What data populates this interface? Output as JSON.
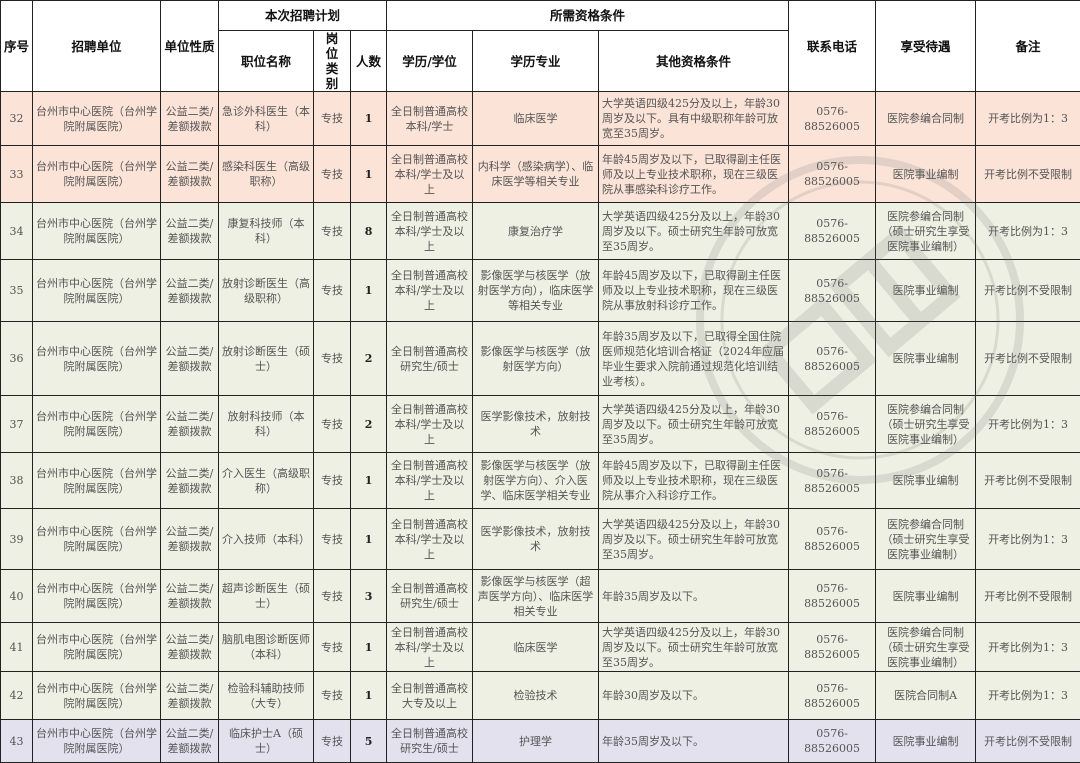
{
  "headers": {
    "seq": "序号",
    "unit": "招聘单位",
    "nature": "单位性质",
    "plan": "本次招聘计划",
    "position": "职位名称",
    "category": "岗位类别",
    "count": "人数",
    "qualifications": "所需资格条件",
    "degree": "学历/学位",
    "major": "学历专业",
    "other": "其他资格条件",
    "phone": "联系电话",
    "benefit": "享受待遇",
    "note": "备注"
  },
  "colors": {
    "pink": "#fbe3d8",
    "green": "#eef0e3",
    "purple": "#e4e1ef"
  },
  "rows": [
    {
      "tone": "pink",
      "seq": "32",
      "unit": "台州市中心医院（台州学院附属医院）",
      "nature": "公益二类/差额拨款",
      "position": "急诊外科医生（本科）",
      "category": "专技",
      "count": "1",
      "degree": "全日制普通高校本科/学士",
      "major": "临床医学",
      "other": "大学英语四级425分及以上，年龄30周岁及以下。具有中级职称年龄可放宽至35周岁。",
      "phone": "0576-88526005",
      "benefit": "医院参编合同制",
      "note": "开考比例为1：3"
    },
    {
      "tone": "pink",
      "seq": "33",
      "unit": "台州市中心医院（台州学院附属医院）",
      "nature": "公益二类/差额拨款",
      "position": "感染科医生（高级职称）",
      "category": "专技",
      "count": "1",
      "degree": "全日制普通高校本科/学士及以上",
      "major": "内科学（感染病学）、临床医学等相关专业",
      "other": "年龄45周岁及以下，已取得副主任医师及以上专业技术职称，现在三级医院从事感染科诊疗工作。",
      "phone": "0576-88526005",
      "benefit": "医院事业编制",
      "note": "开考比例不受限制"
    },
    {
      "tone": "green",
      "seq": "34",
      "unit": "台州市中心医院（台州学院附属医院）",
      "nature": "公益二类/差额拨款",
      "position": "康复科技师（本科）",
      "category": "专技",
      "count": "8",
      "degree": "全日制普通高校本科/学士及以上",
      "major": "康复治疗学",
      "other": "大学英语四级425分及以上，年龄30周岁及以下。硕士研究生年龄可放宽至35周岁。",
      "phone": "0576-88526005",
      "benefit": "医院参编合同制（硕士研究生享受医院事业编制）",
      "note": "开考比例为1：3"
    },
    {
      "tone": "green",
      "seq": "35",
      "unit": "台州市中心医院（台州学院附属医院）",
      "nature": "公益二类/差额拨款",
      "position": "放射诊断医生（高级职称）",
      "category": "专技",
      "count": "1",
      "degree": "全日制普通高校本科/学士及以上",
      "major": "影像医学与核医学（放射医学方向），临床医学等相关专业",
      "other": "年龄45周岁及以下，已取得副主任医师及以上专业技术职称，现在三级医院从事放射科诊疗工作。",
      "phone": "0576-88526005",
      "benefit": "医院事业编制",
      "note": "开考比例不受限制"
    },
    {
      "tone": "green",
      "seq": "36",
      "unit": "台州市中心医院（台州学院附属医院）",
      "nature": "公益二类/差额拨款",
      "position": "放射诊断医生（硕士）",
      "category": "专技",
      "count": "2",
      "degree": "全日制普通高校研究生/硕士",
      "major": "影像医学与核医学（放射医学方向）",
      "other": "年龄35周岁及以下，已取得全国住院医师规范化培训合格证（2024年应届毕业生要求入院前通过规范化培训结业考核）。",
      "phone": "0576-88526005",
      "benefit": "医院事业编制",
      "note": "开考比例不受限制"
    },
    {
      "tone": "green",
      "seq": "37",
      "unit": "台州市中心医院（台州学院附属医院）",
      "nature": "公益二类/差额拨款",
      "position": "放射科技师（本科）",
      "category": "专技",
      "count": "2",
      "degree": "全日制普通高校本科/学士及以上",
      "major": "医学影像技术，放射技术",
      "other": "大学英语四级425分及以上，年龄30周岁及以下。硕士研究生年龄可放宽至35周岁。",
      "phone": "0576-88526005",
      "benefit": "医院参编合同制（硕士研究生享受医院事业编制）",
      "note": "开考比例为1：3"
    },
    {
      "tone": "green",
      "seq": "38",
      "unit": "台州市中心医院（台州学院附属医院）",
      "nature": "公益二类/差额拨款",
      "position": "介入医生（高级职称）",
      "category": "专技",
      "count": "1",
      "degree": "全日制普通高校本科/学士及以上",
      "major": "影像医学与核医学（放射医学方向）、介入医学、临床医学相关专业",
      "other": "年龄45周岁及以下，已取得副主任医师及以上专业技术职称，现在三级医院从事介入科诊疗工作。",
      "phone": "0576-88526005",
      "benefit": "医院事业编制",
      "note": "开考比例不受限制"
    },
    {
      "tone": "green",
      "seq": "39",
      "unit": "台州市中心医院（台州学院附属医院）",
      "nature": "公益二类/差额拨款",
      "position": "介入技师（本科）",
      "category": "专技",
      "count": "1",
      "degree": "全日制普通高校本科/学士及以上",
      "major": "医学影像技术，放射技术",
      "other": "大学英语四级425分及以上，年龄30周岁及以下。硕士研究生年龄可放宽至35周岁。",
      "phone": "0576-88526005",
      "benefit": "医院参编合同制（硕士研究生享受医院事业编制）",
      "note": "开考比例为1：3"
    },
    {
      "tone": "green",
      "seq": "40",
      "unit": "台州市中心医院（台州学院附属医院）",
      "nature": "公益二类/差额拨款",
      "position": "超声诊断医生（硕士）",
      "category": "专技",
      "count": "3",
      "degree": "全日制普通高校研究生/硕士",
      "major": "影像医学与核医学（超声医学方向）、临床医学相关专业",
      "other": "年龄35周岁及以下。",
      "phone": "0576-88526005",
      "benefit": "医院事业编制",
      "note": "开考比例不受限制"
    },
    {
      "tone": "green",
      "seq": "41",
      "unit": "台州市中心医院（台州学院附属医院）",
      "nature": "公益二类/差额拨款",
      "position": "脑肌电图诊断医师（本科）",
      "category": "专技",
      "count": "1",
      "degree": "全日制普通高校本科/学士及以上",
      "major": "临床医学",
      "other": "大学英语四级425分及以上，年龄30周岁及以下。硕士研究生年龄可放宽至35周岁。",
      "phone": "0576-88526005",
      "benefit": "医院参编合同制（硕士研究生享受医院事业编制）",
      "note": "开考比例为1：3"
    },
    {
      "tone": "green",
      "seq": "42",
      "unit": "台州市中心医院（台州学院附属医院）",
      "nature": "公益二类/差额拨款",
      "position": "检验科辅助技师（大专）",
      "category": "专技",
      "count": "1",
      "degree": "全日制普通高校大专及以上",
      "major": "检验技术",
      "other": "年龄30周岁及以下。",
      "phone": "0576-88526005",
      "benefit": "医院合同制A",
      "note": "开考比例为1：3"
    },
    {
      "tone": "purple",
      "seq": "43",
      "unit": "台州市中心医院（台州学院附属医院）",
      "nature": "公益二类/差额拨款",
      "position": "临床护士A（硕士）",
      "category": "专技",
      "count": "5",
      "degree": "全日制普通高校研究生/硕士",
      "major": "护理学",
      "other": "年龄35周岁及以下。",
      "phone": "0576-88526005",
      "benefit": "医院事业编制",
      "note": "开考比例不受限制"
    }
  ]
}
